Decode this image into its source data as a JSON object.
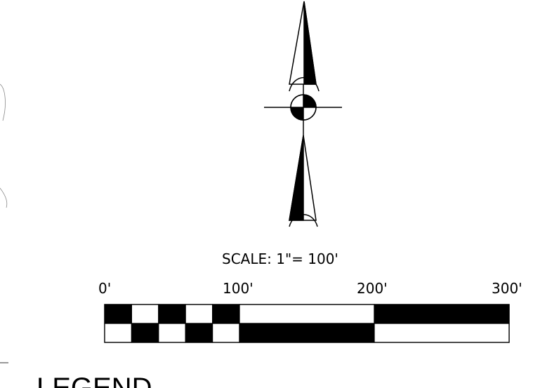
{
  "scale": {
    "label": "SCALE:  1\"= 100'",
    "ticks": [
      "0'",
      "100'",
      "200'",
      "300'"
    ]
  },
  "legend": {
    "title": "LEGEND"
  },
  "colors": {
    "ink": "#000000",
    "paper": "#ffffff"
  }
}
